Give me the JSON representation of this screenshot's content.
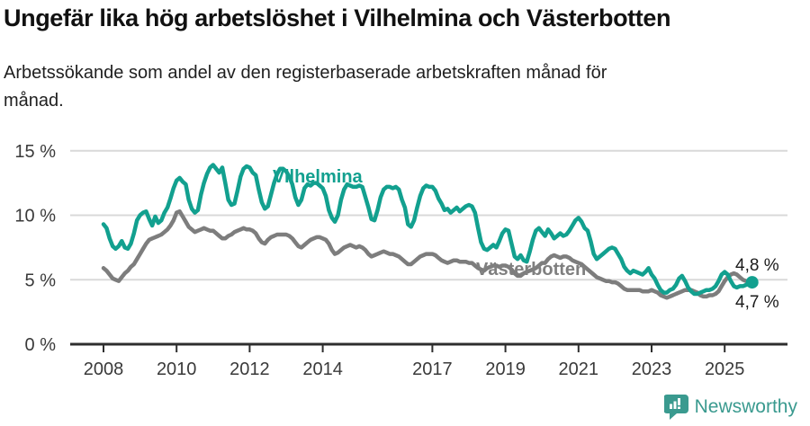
{
  "title": "Ungefär lika hög arbetslöshet i Vilhelmina och Västerbotten",
  "subtitle": "Arbetssökande som andel av den registerbaserade arbetskraften månad för månad.",
  "footer": {
    "brand": "Newsworthy",
    "logo_icon": "newsworthy-speech-bubble-chart-icon"
  },
  "colors": {
    "vilhelmina": "#12a08f",
    "vasterbotten": "#7d7d7d",
    "gridline": "#d9d9d9",
    "axis": "#2e2e2e",
    "tick_text": "#3a3a3a",
    "annotation_text": "#1a1a1a",
    "logo": "#3a9a8f"
  },
  "chart_data": {
    "type": "line",
    "title": "Ungefär lika hög arbetslöshet i Vilhelmina och Västerbotten",
    "subtitle": "Arbetssökande som andel av den registerbaserade arbetskraften månad för månad.",
    "xlabel": "",
    "ylabel": "",
    "unit": "%",
    "grid": "horizontal",
    "legend_position": "inline-labels",
    "ylim": [
      0,
      15
    ],
    "y_ticks": [
      {
        "value": 0,
        "label": "0 %"
      },
      {
        "value": 5,
        "label": "5 %"
      },
      {
        "value": 10,
        "label": "10 %"
      },
      {
        "value": 15,
        "label": "15 %"
      }
    ],
    "x_tick_years": [
      2008,
      2010,
      2012,
      2014,
      2017,
      2019,
      2021,
      2023,
      2025
    ],
    "x_start_year": 2008,
    "x_step": "month",
    "x_end": "2025-10",
    "series": [
      {
        "name": "Vilhelmina",
        "color": "#12a08f",
        "end_label": "4,8 %",
        "end_dot": true,
        "values": [
          9.3,
          9.0,
          8.2,
          7.6,
          7.4,
          7.6,
          8.0,
          7.5,
          7.4,
          7.8,
          8.6,
          9.6,
          10.0,
          10.2,
          10.3,
          9.7,
          9.2,
          9.9,
          9.4,
          9.6,
          10.2,
          10.6,
          11.3,
          12.1,
          12.7,
          12.9,
          12.6,
          12.4,
          11.2,
          10.5,
          10.2,
          10.4,
          11.6,
          12.5,
          13.2,
          13.7,
          13.9,
          13.6,
          13.3,
          13.7,
          12.5,
          11.2,
          10.8,
          10.9,
          11.9,
          13.0,
          13.6,
          13.8,
          13.7,
          13.3,
          13.1,
          12.0,
          11.0,
          10.5,
          10.7,
          11.6,
          12.5,
          13.2,
          13.6,
          13.6,
          13.4,
          13.0,
          12.4,
          11.4,
          10.8,
          11.2,
          12.1,
          12.4,
          12.3,
          12.5,
          12.5,
          12.3,
          12.1,
          11.5,
          10.4,
          9.8,
          9.5,
          10.0,
          11.2,
          12.0,
          12.4,
          12.3,
          12.2,
          12.2,
          12.3,
          12.2,
          11.4,
          10.6,
          9.7,
          9.6,
          10.4,
          11.4,
          12.0,
          12.2,
          12.2,
          12.1,
          12.2,
          12.0,
          11.2,
          10.6,
          9.3,
          9.1,
          9.6,
          10.6,
          11.5,
          12.1,
          12.3,
          12.2,
          12.2,
          11.9,
          11.3,
          10.9,
          10.4,
          10.5,
          10.2,
          10.4,
          10.6,
          10.3,
          10.5,
          10.7,
          10.8,
          10.7,
          10.2,
          9.0,
          7.9,
          7.4,
          7.3,
          7.5,
          7.7,
          7.5,
          8.0,
          8.6,
          8.9,
          8.8,
          7.8,
          6.8,
          6.6,
          6.9,
          6.5,
          6.4,
          7.2,
          8.1,
          8.8,
          9.0,
          8.7,
          8.4,
          8.9,
          8.6,
          8.2,
          8.4,
          8.6,
          8.4,
          8.5,
          8.8,
          9.2,
          9.6,
          9.8,
          9.5,
          9.0,
          8.8,
          8.0,
          7.0,
          6.6,
          6.8,
          7.0,
          7.2,
          7.4,
          7.5,
          7.4,
          7.0,
          6.6,
          6.0,
          5.7,
          5.5,
          5.7,
          5.6,
          5.5,
          5.4,
          5.6,
          5.9,
          5.4,
          5.1,
          4.6,
          4.2,
          4.0,
          4.0,
          4.2,
          4.3,
          4.6,
          5.1,
          5.3,
          4.9,
          4.4,
          4.1,
          3.9,
          3.9,
          4.0,
          4.1,
          4.2,
          4.2,
          4.3,
          4.5,
          4.9,
          5.4,
          5.6,
          5.4,
          4.9,
          4.5,
          4.4,
          4.5,
          4.5,
          4.6,
          4.7,
          4.8
        ]
      },
      {
        "name": "Västerbotten",
        "color": "#7d7d7d",
        "end_label": "4,7 %",
        "end_dot": false,
        "values": [
          5.9,
          5.7,
          5.4,
          5.1,
          5.0,
          4.9,
          5.2,
          5.5,
          5.7,
          6.0,
          6.2,
          6.6,
          7.0,
          7.4,
          7.8,
          8.1,
          8.2,
          8.3,
          8.4,
          8.5,
          8.7,
          8.9,
          9.2,
          9.6,
          10.2,
          10.3,
          9.9,
          9.5,
          9.1,
          8.9,
          8.7,
          8.8,
          8.9,
          9.0,
          8.9,
          8.8,
          8.8,
          8.6,
          8.4,
          8.2,
          8.2,
          8.4,
          8.5,
          8.7,
          8.8,
          8.9,
          9.0,
          8.9,
          8.9,
          8.8,
          8.6,
          8.2,
          7.9,
          7.8,
          8.1,
          8.3,
          8.4,
          8.5,
          8.5,
          8.5,
          8.5,
          8.4,
          8.2,
          7.9,
          7.6,
          7.5,
          7.7,
          7.9,
          8.1,
          8.2,
          8.3,
          8.3,
          8.2,
          8.1,
          7.8,
          7.3,
          7.0,
          7.1,
          7.3,
          7.5,
          7.6,
          7.7,
          7.6,
          7.5,
          7.6,
          7.5,
          7.3,
          7.0,
          6.8,
          6.9,
          7.0,
          7.1,
          7.2,
          7.1,
          7.0,
          7.0,
          6.9,
          6.8,
          6.6,
          6.4,
          6.2,
          6.2,
          6.4,
          6.6,
          6.8,
          6.9,
          7.0,
          7.0,
          7.0,
          6.9,
          6.7,
          6.5,
          6.4,
          6.3,
          6.4,
          6.5,
          6.5,
          6.4,
          6.4,
          6.4,
          6.3,
          6.3,
          6.1,
          5.9,
          5.8,
          5.7,
          5.9,
          6.0,
          6.1,
          6.1,
          6.0,
          6.1,
          6.1,
          6.0,
          5.8,
          5.5,
          5.3,
          5.3,
          5.5,
          5.6,
          5.7,
          5.8,
          5.9,
          6.1,
          6.3,
          6.3,
          6.6,
          6.8,
          6.9,
          6.8,
          6.7,
          6.8,
          6.8,
          6.7,
          6.5,
          6.4,
          6.3,
          6.2,
          6.0,
          5.8,
          5.6,
          5.4,
          5.2,
          5.1,
          5.0,
          4.9,
          4.9,
          4.8,
          4.8,
          4.7,
          4.5,
          4.3,
          4.2,
          4.2,
          4.2,
          4.2,
          4.2,
          4.1,
          4.1,
          4.1,
          4.2,
          4.1,
          4.0,
          3.8,
          3.7,
          3.6,
          3.7,
          3.8,
          3.9,
          4.0,
          4.1,
          4.2,
          4.2,
          4.2,
          4.1,
          4.0,
          3.8,
          3.7,
          3.7,
          3.8,
          3.8,
          3.9,
          4.1,
          4.5,
          4.9,
          5.2,
          5.4,
          5.5,
          5.4,
          5.2,
          5.0,
          4.9,
          4.8,
          4.7
        ]
      }
    ]
  }
}
